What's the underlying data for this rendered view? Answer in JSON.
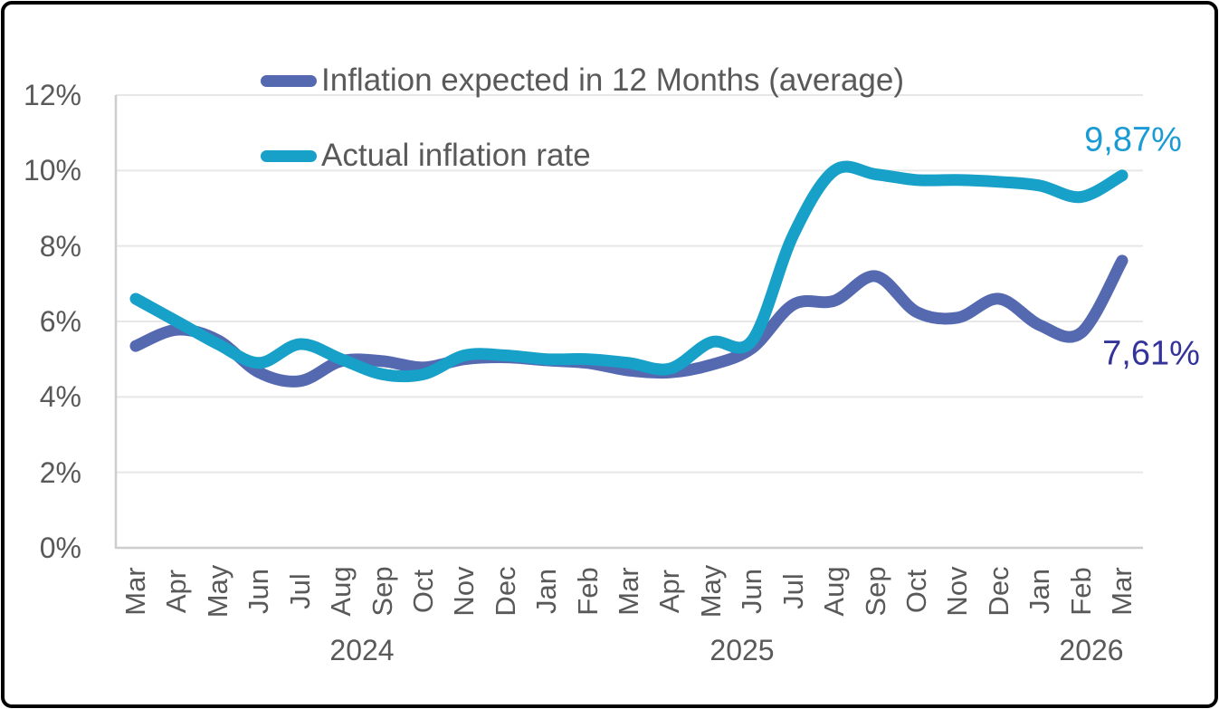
{
  "chart_data": {
    "type": "line",
    "title": "",
    "x": [
      "Mar",
      "Apr",
      "May",
      "Jun",
      "Jul",
      "Aug",
      "Sep",
      "Oct",
      "Nov",
      "Dec",
      "Jan",
      "Feb",
      "Mar",
      "Apr",
      "May",
      "Jun",
      "Jul",
      "Aug",
      "Sep",
      "Oct",
      "Nov",
      "Dec",
      "Jan",
      "Feb",
      "Mar"
    ],
    "x_years": [
      {
        "year": "2024",
        "months": 10
      },
      {
        "year": "2025",
        "months": 12
      },
      {
        "year": "2026",
        "months": 3
      }
    ],
    "series": [
      {
        "name": "Inflation expected in 12 Months (average)",
        "color": "#5569B1",
        "values": [
          5.35,
          5.78,
          5.5,
          4.65,
          4.42,
          4.95,
          4.95,
          4.78,
          5.0,
          5.05,
          4.97,
          4.9,
          4.7,
          4.65,
          4.85,
          5.3,
          6.45,
          6.55,
          7.2,
          6.25,
          6.1,
          6.6,
          5.9,
          5.7,
          7.61
        ]
      },
      {
        "name": "Actual inflation rate",
        "color": "#17A0C8",
        "values": [
          6.6,
          6.0,
          5.4,
          4.9,
          5.4,
          5.0,
          4.6,
          4.6,
          5.1,
          5.1,
          5.0,
          5.0,
          4.9,
          4.75,
          5.45,
          5.5,
          8.3,
          10.0,
          9.9,
          9.75,
          9.75,
          9.7,
          9.6,
          9.3,
          9.87
        ]
      }
    ],
    "ylim": [
      0,
      12
    ],
    "y_ticks": [
      "0%",
      "2%",
      "4%",
      "6%",
      "8%",
      "10%",
      "12%"
    ],
    "grid": true,
    "legend_position": "top-left-inside",
    "end_labels": [
      {
        "series": "Actual inflation rate",
        "text": "9,87%",
        "color": "#1A9BD3"
      },
      {
        "series": "Inflation expected in 12 Months (average)",
        "text": "7,61%",
        "color": "#333399"
      }
    ]
  },
  "colors": {
    "axis_text": "#595959",
    "gridline": "#E7E7E7",
    "axis_line": "#CDCDCD",
    "frame_border": "#000000",
    "background": "#FFFFFF"
  }
}
